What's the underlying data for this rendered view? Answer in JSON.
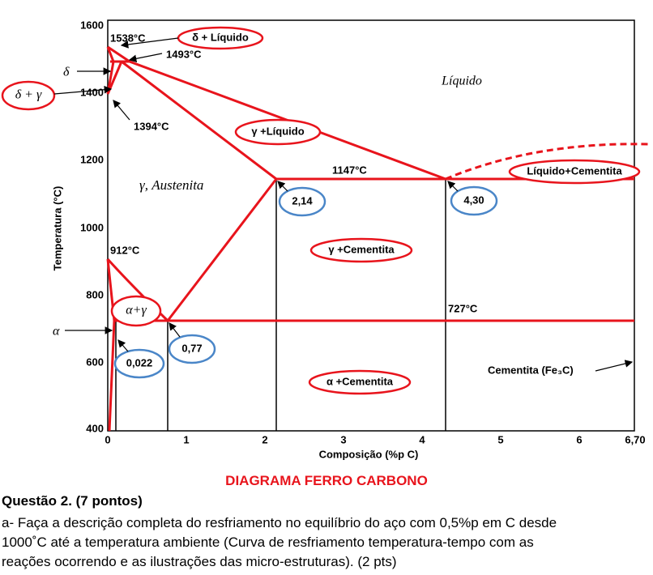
{
  "diagram": {
    "labels": {
      "t1538": "1538°C",
      "delta_liquid": "δ + Líquido",
      "t1493": "1493°C",
      "delta": "δ",
      "delta_gamma": "δ + γ",
      "t1394": "1394°C",
      "liquid": "Líquido",
      "gamma_liquid": "γ +Líquido",
      "t1147": "1147°C",
      "liquid_cementite": "Líquido+Cementita",
      "austenite": "γ, Austenita",
      "c214": "2,14",
      "c430": "4,30",
      "t912": "912°C",
      "gamma_cementite": "γ +Cementita",
      "alpha_gamma": "α+γ",
      "t727": "727°C",
      "alpha": "α",
      "c077": "0,77",
      "c0022": "0,022",
      "cementite": "Cementita (Fe₃C)",
      "alpha_cementite": "α +Cementita"
    },
    "y_axis": {
      "title": "Temperatura (°C)",
      "ticks": [
        "1600",
        "1400",
        "1200",
        "1000",
        "800",
        "600",
        "400"
      ]
    },
    "x_axis": {
      "title": "Composição (%p C)",
      "ticks": [
        "0",
        "1",
        "2",
        "3",
        "4",
        "5",
        "6",
        "6,70"
      ]
    }
  },
  "caption": "DIAGRAMA FERRO CARBONO",
  "question": {
    "title": "Questão 2. (7 pontos)",
    "lines": [
      "a- Faça a descrição completa do resfriamento no equilíbrio do aço com 0,5%p em C desde",
      "1000˚C até a temperatura ambiente (Curva de resfriamento temperatura-tempo com as",
      "reações ocorrendo e as ilustrações das micro-estruturas). (2 pts)"
    ]
  }
}
